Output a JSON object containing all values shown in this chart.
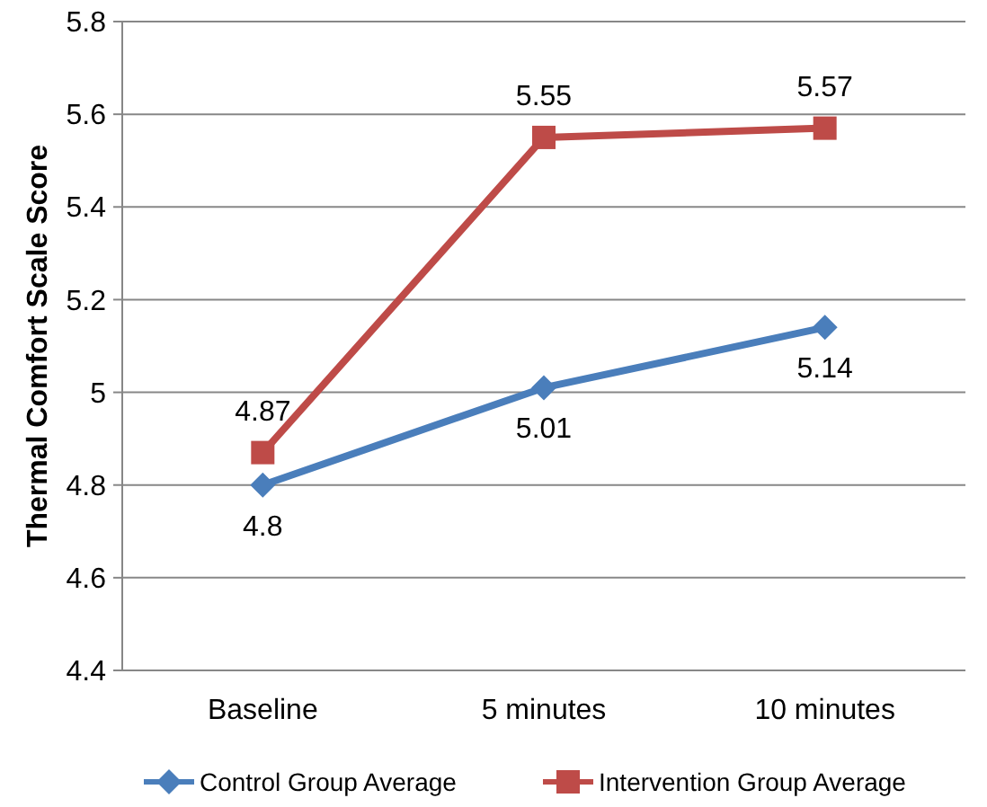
{
  "chart_data": {
    "type": "line",
    "ylabel": "Thermal Comfort Scale Score",
    "categories": [
      "Baseline",
      "5 minutes",
      "10 minutes"
    ],
    "series": [
      {
        "name": "Control Group Average",
        "color": "#4a7ebb",
        "marker": "diamond",
        "values": [
          4.8,
          5.01,
          5.14
        ]
      },
      {
        "name": "Intervention Group Average",
        "color": "#be4b48",
        "marker": "square",
        "values": [
          4.87,
          5.55,
          5.57
        ]
      }
    ],
    "ylim": [
      4.4,
      5.8
    ],
    "yticks": [
      4.4,
      4.6,
      4.8,
      5,
      5.2,
      5.4,
      5.6,
      5.8
    ],
    "grid": "y",
    "legend": "bottom",
    "data_labels": true
  }
}
